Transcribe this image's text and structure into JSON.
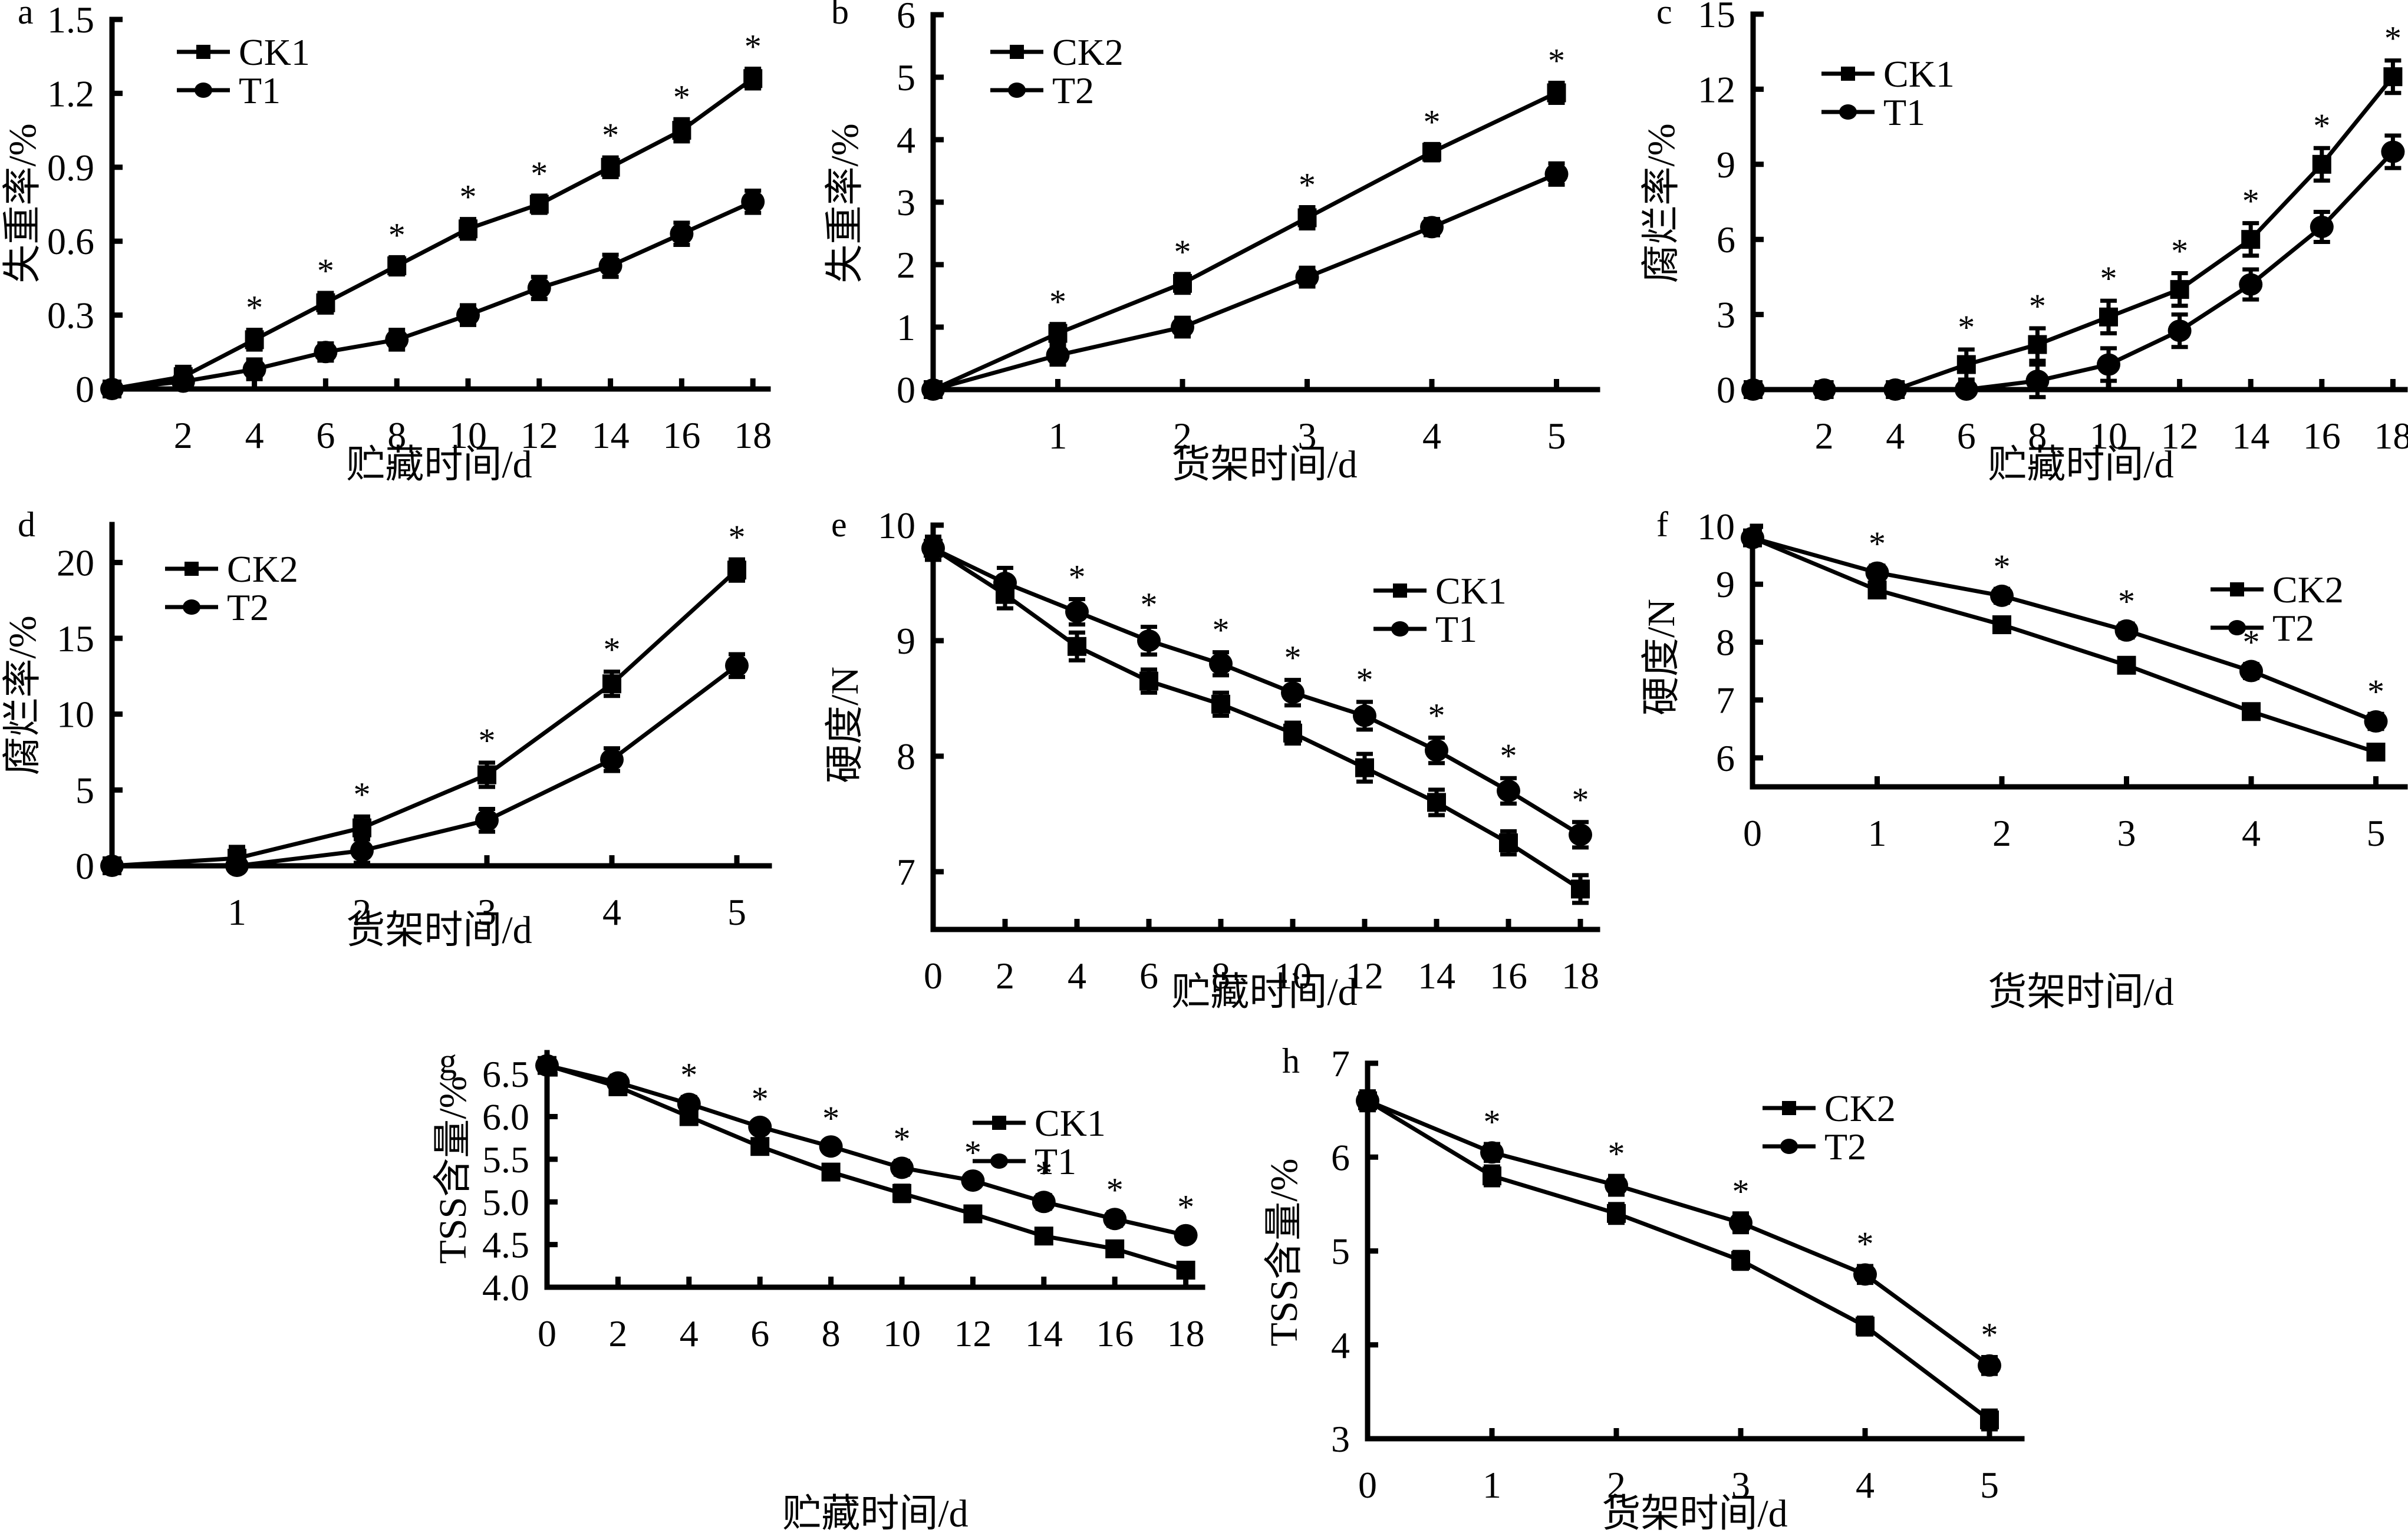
{
  "chart_data": [
    {
      "id": "a",
      "type": "line",
      "panel_label": "a",
      "xlabel": "贮藏时间/d",
      "ylabel": "失重率/%",
      "x": [
        0,
        2,
        4,
        6,
        8,
        10,
        12,
        14,
        16,
        18
      ],
      "xticks": [
        2,
        4,
        6,
        8,
        10,
        12,
        14,
        16,
        18
      ],
      "yticks": [
        0,
        0.3,
        0.6,
        0.9,
        1.2,
        1.5
      ],
      "ytick_labels": [
        "0",
        "0.3",
        "0.6",
        "0.9",
        "1.2",
        "1.5"
      ],
      "xlim": [
        0,
        18.5
      ],
      "ylim": [
        0,
        1.5
      ],
      "legend_position": "top-left",
      "series": [
        {
          "name": "CK1",
          "marker": "square",
          "values": [
            0,
            0.05,
            0.2,
            0.35,
            0.5,
            0.65,
            0.75,
            0.9,
            1.05,
            1.26
          ],
          "errors": [
            0,
            0.04,
            0.04,
            0.04,
            0.035,
            0.04,
            0.035,
            0.04,
            0.045,
            0.04
          ]
        },
        {
          "name": "T1",
          "marker": "circle",
          "values": [
            0,
            0.03,
            0.08,
            0.15,
            0.2,
            0.3,
            0.41,
            0.5,
            0.63,
            0.76
          ],
          "errors": [
            0,
            0.03,
            0.04,
            0.035,
            0.04,
            0.04,
            0.045,
            0.045,
            0.045,
            0.045
          ]
        }
      ],
      "significant_x": [
        4,
        6,
        8,
        10,
        12,
        14,
        16,
        18
      ],
      "significance_marker": "*"
    },
    {
      "id": "b",
      "type": "line",
      "panel_label": "b",
      "xlabel": "货架时间/d",
      "ylabel": "失重率/%",
      "x": [
        0,
        1,
        2,
        3,
        4,
        5
      ],
      "xticks": [
        1,
        2,
        3,
        4,
        5
      ],
      "yticks": [
        0,
        1,
        2,
        3,
        4,
        5,
        6
      ],
      "ytick_labels": [
        "0",
        "1",
        "2",
        "3",
        "4",
        "5",
        "6"
      ],
      "xlim": [
        0,
        5.25
      ],
      "ylim": [
        0,
        6
      ],
      "legend_position": "top-left",
      "series": [
        {
          "name": "CK2",
          "marker": "square",
          "values": [
            0,
            0.9,
            1.7,
            2.75,
            3.8,
            4.75
          ],
          "errors": [
            0,
            0.15,
            0.15,
            0.17,
            0.13,
            0.16
          ]
        },
        {
          "name": "T2",
          "marker": "circle",
          "values": [
            0,
            0.55,
            1.0,
            1.8,
            2.6,
            3.45
          ],
          "errors": [
            0,
            0.15,
            0.15,
            0.15,
            0.13,
            0.17
          ]
        }
      ],
      "significant_x": [
        1,
        2,
        3,
        4,
        5
      ],
      "significance_marker": "*"
    },
    {
      "id": "c",
      "type": "line",
      "panel_label": "c",
      "xlabel": "贮藏时间/d",
      "ylabel": "腐烂率/%",
      "x": [
        0,
        2,
        4,
        6,
        8,
        10,
        12,
        14,
        16,
        18
      ],
      "xticks": [
        2,
        4,
        6,
        8,
        10,
        12,
        14,
        16,
        18
      ],
      "yticks": [
        0,
        3,
        6,
        9,
        12,
        15
      ],
      "ytick_labels": [
        "0",
        "3",
        "6",
        "9",
        "12",
        "15"
      ],
      "xlim": [
        0,
        18.3
      ],
      "ylim": [
        0,
        15
      ],
      "legend_position": "top-left",
      "series": [
        {
          "name": "CK1",
          "marker": "square",
          "values": [
            0,
            0,
            0,
            1.0,
            1.8,
            2.9,
            4.0,
            6.0,
            9.0,
            12.5
          ],
          "errors": [
            0,
            0,
            0,
            0.6,
            0.65,
            0.65,
            0.65,
            0.65,
            0.65,
            0.65
          ]
        },
        {
          "name": "T1",
          "marker": "circle",
          "values": [
            0,
            0,
            0,
            0,
            0.35,
            1.0,
            2.35,
            4.2,
            6.5,
            9.5
          ],
          "errors": [
            0,
            0,
            0,
            0,
            0.65,
            0.65,
            0.65,
            0.6,
            0.6,
            0.65
          ]
        }
      ],
      "significant_x": [
        6,
        8,
        10,
        12,
        14,
        16,
        18
      ],
      "significance_marker": "*"
    },
    {
      "id": "d",
      "type": "line",
      "panel_label": "d",
      "xlabel": "货架时间/d",
      "ylabel": "腐烂率/%",
      "x": [
        0,
        1,
        2,
        3,
        4,
        5
      ],
      "xticks": [
        1,
        2,
        3,
        4,
        5
      ],
      "yticks": [
        0,
        5,
        10,
        15,
        20
      ],
      "ytick_labels": [
        "0",
        "5",
        "10",
        "15",
        "20"
      ],
      "xlim": [
        0,
        5.25
      ],
      "ylim": [
        0,
        22.5
      ],
      "legend_position": "top-left",
      "series": [
        {
          "name": "CK2",
          "marker": "square",
          "values": [
            0,
            0.5,
            2.5,
            6.0,
            12.0,
            19.5
          ],
          "errors": [
            0,
            0.75,
            0.75,
            0.8,
            0.8,
            0.7
          ]
        },
        {
          "name": "T2",
          "marker": "circle",
          "values": [
            0,
            0,
            1.0,
            3.0,
            7.0,
            13.2
          ],
          "errors": [
            0,
            0,
            0.8,
            0.75,
            0.75,
            0.75
          ]
        }
      ],
      "significant_x": [
        2,
        3,
        4,
        5
      ],
      "significance_marker": "*"
    },
    {
      "id": "e",
      "type": "line",
      "panel_label": "e",
      "xlabel": "贮藏时间/d",
      "ylabel": "硬度/N",
      "x": [
        0,
        2,
        4,
        6,
        8,
        10,
        12,
        14,
        16,
        18
      ],
      "xticks": [
        0,
        2,
        4,
        6,
        8,
        10,
        12,
        14,
        16,
        18
      ],
      "yticks": [
        7,
        8,
        9,
        10
      ],
      "ytick_labels": [
        "7",
        "8",
        "9",
        "10"
      ],
      "xlim": [
        0,
        18.5
      ],
      "ylim": [
        6.5,
        10
      ],
      "legend_position": "top-right",
      "series": [
        {
          "name": "CK1",
          "marker": "square",
          "values": [
            9.8,
            9.4,
            8.95,
            8.65,
            8.45,
            8.2,
            7.9,
            7.6,
            7.25,
            6.85
          ],
          "errors": [
            0.1,
            0.12,
            0.12,
            0.1,
            0.1,
            0.09,
            0.12,
            0.11,
            0.1,
            0.12
          ]
        },
        {
          "name": "T1",
          "marker": "circle",
          "values": [
            9.8,
            9.5,
            9.25,
            9.0,
            8.8,
            8.55,
            8.35,
            8.05,
            7.7,
            7.32
          ],
          "errors": [
            0.1,
            0.13,
            0.11,
            0.12,
            0.1,
            0.11,
            0.12,
            0.11,
            0.11,
            0.11
          ]
        }
      ],
      "significant_x": [
        4,
        6,
        8,
        10,
        12,
        14,
        16,
        18
      ],
      "significance_marker": "*"
    },
    {
      "id": "f",
      "type": "line",
      "panel_label": "f",
      "xlabel": "货架时间/d",
      "ylabel": "硬度/N",
      "x": [
        0,
        1,
        2,
        3,
        4,
        5
      ],
      "xticks": [
        0,
        1,
        2,
        3,
        4,
        5
      ],
      "yticks": [
        6,
        7,
        8,
        9,
        10
      ],
      "ytick_labels": [
        "6",
        "7",
        "8",
        "9",
        "10"
      ],
      "xlim": [
        0,
        5.25
      ],
      "ylim": [
        5.5,
        10
      ],
      "legend_position": "top-right",
      "series": [
        {
          "name": "CK2",
          "marker": "square",
          "values": [
            9.8,
            8.9,
            8.3,
            7.6,
            6.8,
            6.1
          ],
          "errors": [
            0.1,
            0.12,
            0.12,
            0.1,
            0.1,
            0.12
          ]
        },
        {
          "name": "T2",
          "marker": "circle",
          "values": [
            9.8,
            9.2,
            8.8,
            8.2,
            7.5,
            6.63
          ],
          "errors": [
            0.1,
            0.12,
            0.12,
            0.12,
            0.12,
            0.13
          ]
        }
      ],
      "significant_x": [
        1,
        2,
        3,
        4,
        5
      ],
      "significance_marker": "*"
    },
    {
      "id": "g",
      "type": "line",
      "panel_label": "g",
      "xlabel": "贮藏时间/d",
      "ylabel": "TSS含量/%",
      "x": [
        0,
        2,
        4,
        6,
        8,
        10,
        12,
        14,
        16,
        18
      ],
      "xticks": [
        0,
        2,
        4,
        6,
        8,
        10,
        12,
        14,
        16,
        18
      ],
      "yticks": [
        4.0,
        4.5,
        5.0,
        5.5,
        6.0,
        6.5
      ],
      "ytick_labels": [
        "4.0",
        "4.5",
        "5.0",
        "5.5",
        "6.0",
        "6.5"
      ],
      "xlim": [
        0,
        18.5
      ],
      "ylim": [
        4.0,
        6.75
      ],
      "legend_position": "top-right",
      "series": [
        {
          "name": "CK1",
          "marker": "square",
          "values": [
            6.6,
            6.35,
            6.0,
            5.65,
            5.35,
            5.1,
            4.86,
            4.6,
            4.45,
            4.2
          ],
          "errors": [
            0.07,
            0.07,
            0.08,
            0.07,
            0.08,
            0.09,
            0.07,
            0.08,
            0.08,
            0.08
          ]
        },
        {
          "name": "T1",
          "marker": "circle",
          "values": [
            6.6,
            6.4,
            6.15,
            5.88,
            5.65,
            5.4,
            5.25,
            5.0,
            4.8,
            4.61
          ],
          "errors": [
            0.07,
            0.08,
            0.08,
            0.07,
            0.07,
            0.08,
            0.07,
            0.08,
            0.08,
            0.07
          ]
        }
      ],
      "significant_x": [
        4,
        6,
        8,
        10,
        12,
        14,
        16,
        18
      ],
      "significance_marker": "*"
    },
    {
      "id": "h",
      "type": "line",
      "panel_label": "h",
      "xlabel": "货架时间/d",
      "ylabel": "TSS含量/%",
      "x": [
        0,
        1,
        2,
        3,
        4,
        5
      ],
      "xticks": [
        0,
        1,
        2,
        3,
        4,
        5
      ],
      "yticks": [
        3,
        4,
        5,
        6,
        7
      ],
      "ytick_labels": [
        "3",
        "4",
        "5",
        "6",
        "7"
      ],
      "xlim": [
        0,
        5.2
      ],
      "ylim": [
        3,
        7
      ],
      "legend_position": "top-right",
      "series": [
        {
          "name": "CK2",
          "marker": "square",
          "values": [
            6.6,
            5.8,
            5.4,
            4.9,
            4.2,
            3.2
          ],
          "errors": [
            0.1,
            0.1,
            0.1,
            0.09,
            0.09,
            0.1
          ]
        },
        {
          "name": "T2",
          "marker": "circle",
          "values": [
            6.6,
            6.05,
            5.7,
            5.3,
            4.75,
            3.78
          ],
          "errors": [
            0.1,
            0.09,
            0.1,
            0.1,
            0.09,
            0.09
          ]
        }
      ],
      "significant_x": [
        1,
        2,
        3,
        4,
        5
      ],
      "significance_marker": "*"
    }
  ]
}
